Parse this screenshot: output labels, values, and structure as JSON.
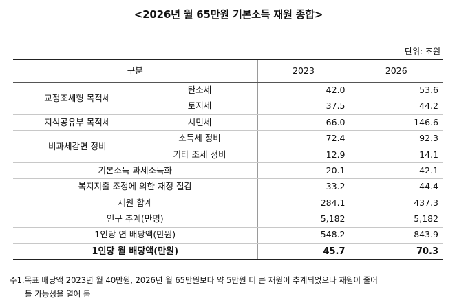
{
  "title": "<2026년 월 65만원 기본소득 재원 종합>",
  "unit": "단위: 조원",
  "header": {
    "category": "구분",
    "year1": "2023",
    "year2": "2026"
  },
  "rows": {
    "corrective_tax": {
      "label": "교정조세형 목적세"
    },
    "carbon_tax": {
      "label": "탄소세",
      "v2023": "42.0",
      "v2026": "53.6"
    },
    "land_tax": {
      "label": "토지세",
      "v2023": "37.5",
      "v2026": "44.2"
    },
    "knowledge_tax": {
      "label": "지식공유부 목적세"
    },
    "citizen_tax": {
      "label": "시민세",
      "v2023": "66.0",
      "v2026": "146.6"
    },
    "nontax_reform": {
      "label": "비과세감면 정비"
    },
    "income_tax_reform": {
      "label": "소득세 정비",
      "v2023": "72.4",
      "v2026": "92.3"
    },
    "other_tax_reform": {
      "label": "기타 조세 정비",
      "v2023": "12.9",
      "v2026": "14.1"
    },
    "basic_income_tax": {
      "label": "기본소득 과세소득화",
      "v2023": "20.1",
      "v2026": "42.1"
    },
    "welfare_savings": {
      "label": "복지지출 조정에 의한 재정 절감",
      "v2023": "33.2",
      "v2026": "44.4"
    },
    "total": {
      "label": "재원 합계",
      "v2023": "284.1",
      "v2026": "437.3"
    },
    "population": {
      "label": "인구 추계(만명)",
      "v2023": "5,182",
      "v2026": "5,182"
    },
    "annual_dividend": {
      "label": "1인당 연 배당액(만원)",
      "v2023": "548.2",
      "v2026": "843.9"
    },
    "monthly_dividend": {
      "label": "1인당 월 배당액(만원)",
      "v2023": "45.7",
      "v2026": "70.3"
    }
  },
  "notes": {
    "line1": "주1.목표 배당액 2023년 월 40만원, 2026년 월 65만원보다 약 5만원 더 큰 재원이 추계되었으나 재원이 줄어",
    "line2": "들 가능성을 열어 둠"
  }
}
